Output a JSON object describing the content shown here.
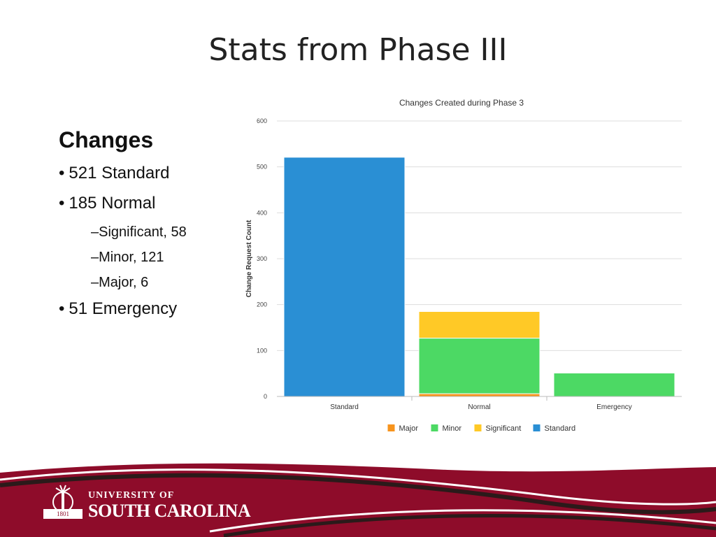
{
  "slide": {
    "title": "Stats from Phase III"
  },
  "summary": {
    "heading": "Changes",
    "bullet_glyph": "•",
    "items": [
      {
        "text": "521 Standard"
      },
      {
        "text": "185 Normal"
      },
      {
        "text": "–Significant, 58"
      },
      {
        "text": "–Minor, 121"
      },
      {
        "text": "–Major, 6"
      },
      {
        "text": "51 Emergency"
      }
    ]
  },
  "chart_data": {
    "type": "bar",
    "stacked": true,
    "title": "Changes Created during Phase 3",
    "ylabel": "Change Request Count",
    "xlabel": "",
    "ylim": [
      0,
      600
    ],
    "yticks": [
      0,
      100,
      200,
      300,
      400,
      500,
      600
    ],
    "grid": true,
    "legend_position": "bottom",
    "categories": [
      "Standard",
      "Normal",
      "Emergency"
    ],
    "series": [
      {
        "name": "Major",
        "color": "#F7941D",
        "values": [
          0,
          6,
          0
        ]
      },
      {
        "name": "Minor",
        "color": "#4CD964",
        "values": [
          0,
          121,
          51
        ]
      },
      {
        "name": "Significant",
        "color": "#FFC926",
        "values": [
          0,
          58,
          0
        ]
      },
      {
        "name": "Standard",
        "color": "#2A8FD4",
        "values": [
          521,
          0,
          0
        ]
      }
    ]
  },
  "branding": {
    "line1": "UNIVERSITY OF",
    "line2": "SOUTH CAROLINA",
    "year": "1801",
    "primary_color": "#8E0C2A"
  }
}
